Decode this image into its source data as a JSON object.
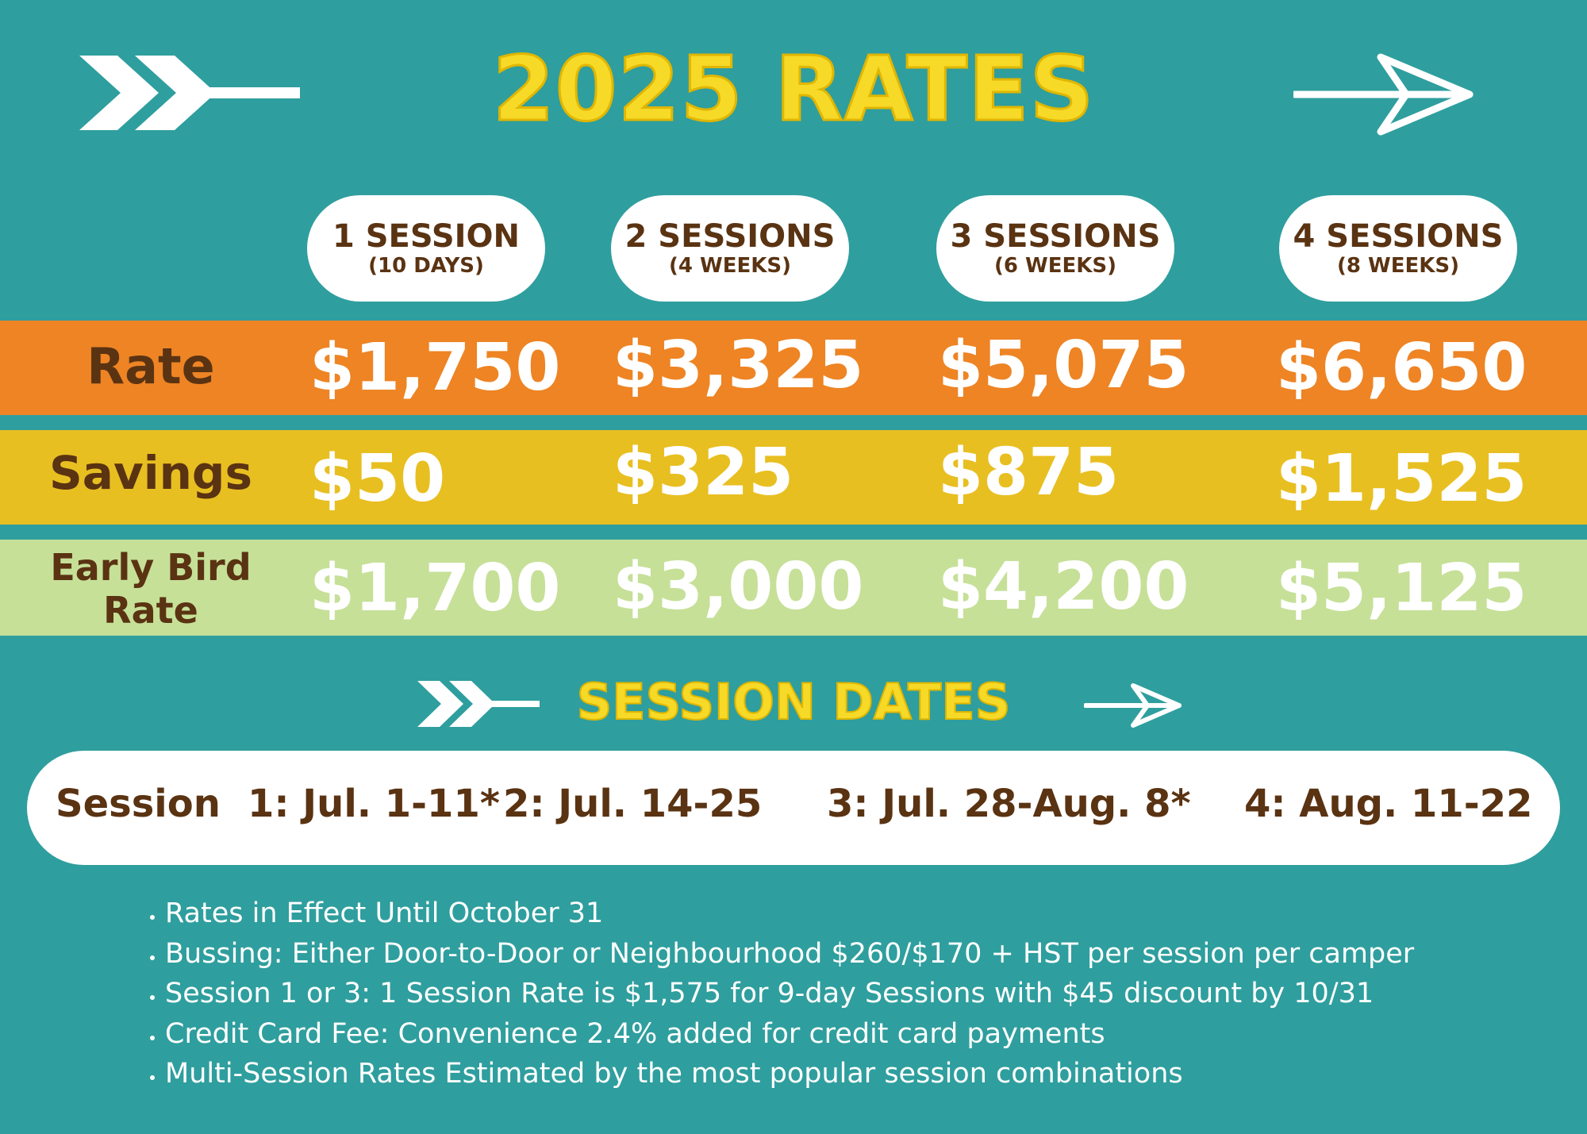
{
  "title": "2025 RATES",
  "icons": {
    "top_left": "double-chevron-arrow-tail-icon",
    "top_right": "long-arrow-right-icon",
    "dates_left": "double-chevron-arrow-tail-icon",
    "dates_right": "long-arrow-right-icon"
  },
  "colors": {
    "background": "#2f9e9e",
    "title": "#f7d928",
    "rate_band": "#ee8424",
    "savings_band": "#e8bf21",
    "early_band": "#c6e098",
    "label_text": "#5a3312"
  },
  "columns": [
    {
      "title": "1 SESSION",
      "subtitle": "(10 DAYS)"
    },
    {
      "title": "2 SESSIONS",
      "subtitle": "(4 WEEKS)"
    },
    {
      "title": "3 SESSIONS",
      "subtitle": "(6 WEEKS)"
    },
    {
      "title": "4 SESSIONS",
      "subtitle": "(8 WEEKS)"
    }
  ],
  "rows": {
    "rate": {
      "label": "Rate",
      "values": [
        "$1,750",
        "$3,325",
        "$5,075",
        "$6,650"
      ]
    },
    "savings": {
      "label": "Savings",
      "values": [
        "$50",
        "$325",
        "$875",
        "$1,525"
      ]
    },
    "early_bird": {
      "label_line1": "Early Bird",
      "label_line2": "Rate",
      "values": [
        "$1,700",
        "$3,000",
        "$4,200",
        "$5,125"
      ]
    }
  },
  "session_dates": {
    "title": "SESSION DATES",
    "label": "Session",
    "items": [
      "1: Jul. 1-11*",
      "2: Jul. 14-25",
      "3: Jul. 28-Aug. 8*",
      "4: Aug. 11-22"
    ]
  },
  "notes": [
    "Rates in Effect Until October 31",
    "Bussing: Either Door-to-Door or Neighbourhood $260/$170 + HST per session per camper",
    "Session 1 or 3: 1 Session Rate is $1,575 for 9-day Sessions with $45 discount by 10/31",
    "Credit Card Fee: Convenience 2.4% added for credit card payments",
    "Multi-Session Rates Estimated by the most popular session combinations"
  ]
}
